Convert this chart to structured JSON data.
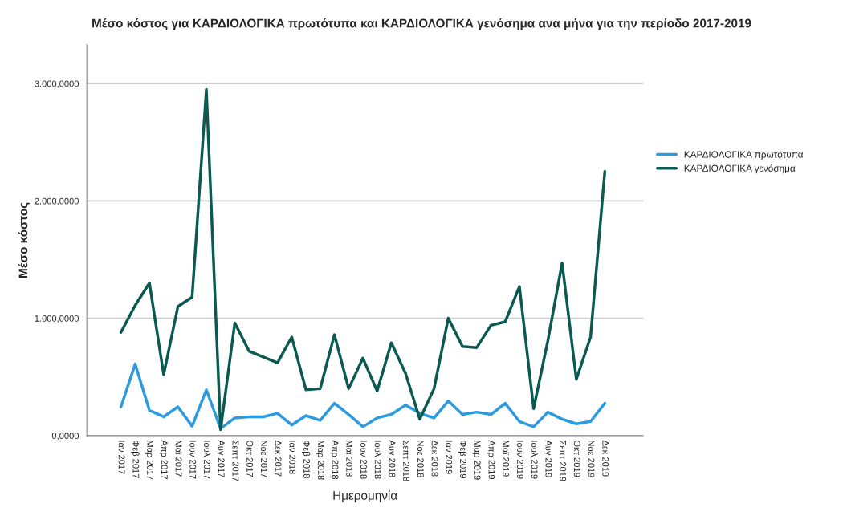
{
  "chart_data": {
    "type": "line",
    "title": "Μέσο κόστος για ΚΑΡΔΙΟΛΟΓΙΚΑ πρωτότυπα και ΚΑΡΔΙΟΛΟΓΙΚΑ γενόσημα ανα μήνα για την περίοδο 2017-2019",
    "xlabel": "Ημερομηνία",
    "ylabel": "Μέσο κόστος",
    "categories": [
      "Ιαν 2017",
      "Φεβ 2017",
      "Μαρ 2017",
      "Απρ 2017",
      "Μαϊ 2017",
      "Ιουν 2017",
      "Ιουλ 2017",
      "Αυγ 2017",
      "Σεπτ 2017",
      "Οκτ 2017",
      "Νοε 2017",
      "Δεκ 2017",
      "Ιαν 2018",
      "Φεβ 2018",
      "Μαρ 2018",
      "Απρ 2018",
      "Μαϊ 2018",
      "Ιουν 2018",
      "Ιουλ 2018",
      "Αυγ 2018",
      "Σεπτ 2018",
      "Νοε 2018",
      "Δεκ 2018",
      "Ιαν 2019",
      "Φεβ 2019",
      "Μαρ 2019",
      "Απρ 2019",
      "Μαϊ 2019",
      "Ιουν 2019",
      "Ιουλ 2019",
      "Αυγ 2019",
      "Σεπτ 2019",
      "Οκτ 2019",
      "Νοε 2019",
      "Δεκ 2019"
    ],
    "series": [
      {
        "name": "ΚΑΡΔΙΟΛΟΓΙΚΑ πρωτότυπα",
        "color": "#2a9be0",
        "values": [
          245,
          610,
          215,
          160,
          245,
          80,
          390,
          60,
          150,
          160,
          160,
          190,
          90,
          170,
          130,
          275,
          180,
          75,
          150,
          180,
          260,
          190,
          150,
          295,
          180,
          200,
          180,
          275,
          120,
          75,
          200,
          140,
          100,
          120,
          275
        ]
      },
      {
        "name": "ΚΑΡΔΙΟΛΟΓΙΚΑ γενόσημα",
        "color": "#0b5a52",
        "values": [
          880,
          1110,
          1300,
          520,
          1100,
          1180,
          2950,
          50,
          960,
          720,
          670,
          620,
          840,
          390,
          400,
          860,
          400,
          660,
          380,
          790,
          530,
          140,
          400,
          1000,
          760,
          750,
          940,
          970,
          1270,
          230,
          810,
          1470,
          480,
          840,
          2250
        ]
      }
    ],
    "ylim": [
      0,
      3330
    ],
    "yticks": [
      {
        "value": 0,
        "label": "0,0000"
      },
      {
        "value": 1000,
        "label": "1.000,0000"
      },
      {
        "value": 2000,
        "label": "2.000,0000"
      },
      {
        "value": 3000,
        "label": "3.000,0000"
      }
    ],
    "grid": "y",
    "legend": "right"
  }
}
